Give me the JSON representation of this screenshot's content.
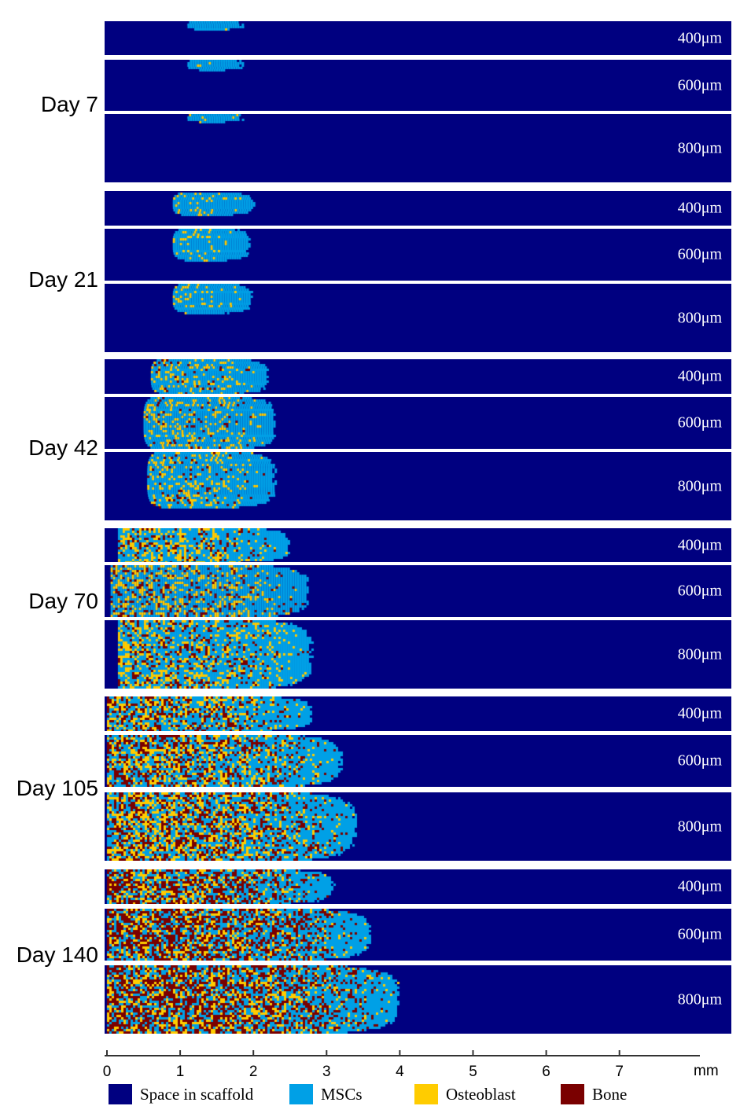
{
  "colors": {
    "space": "#000080",
    "mscs": "#00a0e6",
    "osteoblast": "#ffcc00",
    "bone": "#7a0000"
  },
  "axis": {
    "unit": "mm",
    "ticks": [
      "0",
      "1",
      "2",
      "3",
      "4",
      "5",
      "6",
      "7"
    ]
  },
  "legend": [
    {
      "label": "Space in scaffold",
      "color": "#000080"
    },
    {
      "label": "MSCs",
      "color": "#00a0e6"
    },
    {
      "label": "Osteoblast",
      "color": "#ffcc00"
    },
    {
      "label": "Bone",
      "color": "#7a0000"
    }
  ],
  "groups": [
    {
      "day": "Day 7",
      "mix": [
        1,
        0.05,
        0
      ],
      "panels": [
        {
          "label": "400μm",
          "start_mm": 1.1,
          "end_mm": 1.85,
          "v": [
            0.0,
            0.25
          ]
        },
        {
          "label": "600μm",
          "start_mm": 1.1,
          "end_mm": 1.85,
          "v": [
            0.0,
            0.2
          ]
        },
        {
          "label": "800μm",
          "start_mm": 1.1,
          "end_mm": 1.85,
          "v": [
            0.0,
            0.12
          ]
        }
      ]
    },
    {
      "day": "Day 21",
      "mix": [
        0.85,
        0.15,
        0
      ],
      "panels": [
        {
          "label": "400μm",
          "start_mm": 0.9,
          "end_mm": 2.0,
          "v": [
            0.05,
            0.7
          ]
        },
        {
          "label": "600μm",
          "start_mm": 0.9,
          "end_mm": 1.95,
          "v": [
            0.0,
            0.6
          ]
        },
        {
          "label": "800μm",
          "start_mm": 0.9,
          "end_mm": 1.98,
          "v": [
            0.0,
            0.42
          ]
        }
      ]
    },
    {
      "day": "Day 42",
      "mix": [
        0.7,
        0.25,
        0.05
      ],
      "panels": [
        {
          "label": "400μm",
          "start_mm": 0.6,
          "end_mm": 2.2,
          "v": [
            0.0,
            1.0
          ]
        },
        {
          "label": "600μm",
          "start_mm": 0.5,
          "end_mm": 2.3,
          "v": [
            0.0,
            1.0
          ]
        },
        {
          "label": "800μm",
          "start_mm": 0.55,
          "end_mm": 2.3,
          "v": [
            0.0,
            0.8
          ]
        }
      ]
    },
    {
      "day": "Day 70",
      "mix": [
        0.55,
        0.3,
        0.15
      ],
      "panels": [
        {
          "label": "400μm",
          "start_mm": 0.15,
          "end_mm": 2.5,
          "v": [
            0.0,
            1.0
          ]
        },
        {
          "label": "600μm",
          "start_mm": 0.05,
          "end_mm": 2.75,
          "v": [
            0.0,
            1.0
          ]
        },
        {
          "label": "800μm",
          "start_mm": 0.15,
          "end_mm": 2.8,
          "v": [
            0.0,
            1.0
          ]
        }
      ]
    },
    {
      "day": "Day 105",
      "mix": [
        0.4,
        0.3,
        0.3
      ],
      "panels": [
        {
          "label": "400μm",
          "start_mm": 0,
          "end_mm": 2.8,
          "v": [
            0.0,
            1.0
          ]
        },
        {
          "label": "600μm",
          "start_mm": 0,
          "end_mm": 3.2,
          "v": [
            0.0,
            1.0
          ]
        },
        {
          "label": "800μm",
          "start_mm": 0,
          "end_mm": 3.4,
          "v": [
            0.0,
            1.0
          ]
        }
      ]
    },
    {
      "day": "Day 140",
      "mix": [
        0.3,
        0.25,
        0.45
      ],
      "panels": [
        {
          "label": "400μm",
          "start_mm": 0,
          "end_mm": 3.1,
          "v": [
            0.0,
            1.0
          ]
        },
        {
          "label": "600μm",
          "start_mm": 0,
          "end_mm": 3.6,
          "v": [
            0.0,
            1.0
          ]
        },
        {
          "label": "800μm",
          "start_mm": 0,
          "end_mm": 4.0,
          "v": [
            0.0,
            1.0
          ]
        }
      ]
    }
  ]
}
